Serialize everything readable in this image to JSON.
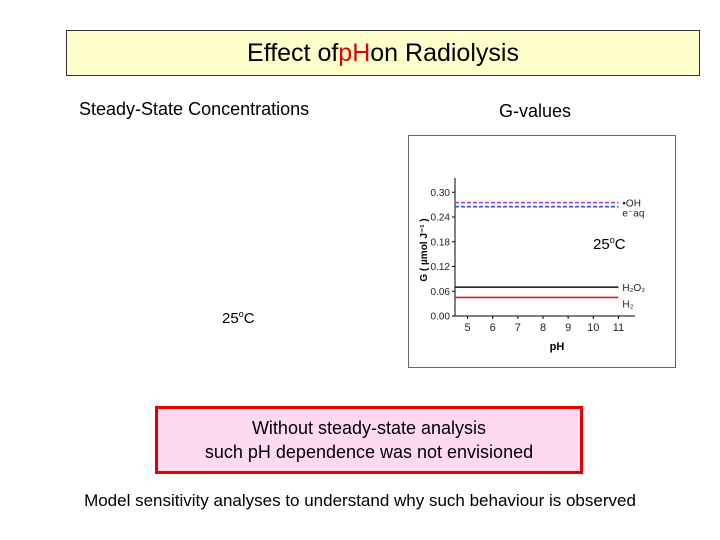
{
  "title": {
    "before": "Effect of ",
    "highlight": "pH",
    "after": " on Radiolysis"
  },
  "left_heading": "Steady-State Concentrations",
  "right_heading": "G-values",
  "temp_left": {
    "value": "25",
    "superscript": "o",
    "unit": "C"
  },
  "temp_right": {
    "value": "25",
    "superscript": "o",
    "unit": "C"
  },
  "note": {
    "line1": "Without steady-state analysis",
    "line2": "such pH dependence was not envisioned"
  },
  "footer": "Model sensitivity analyses to understand why such behaviour is observed",
  "chart_data": {
    "type": "line",
    "xlabel": "pH",
    "ylabel": "G ( µmol J⁻¹ )",
    "xlim": [
      4.5,
      11.5
    ],
    "ylim": [
      0.0,
      0.32
    ],
    "xticks": [
      "5",
      "6",
      "7",
      "8",
      "9",
      "10",
      "11"
    ],
    "yticks": [
      "0.00",
      "0.06",
      "0.12",
      "0.18",
      "0.24",
      "0.30"
    ],
    "grid": false,
    "legend": "right",
    "series": [
      {
        "name": "•OH",
        "color": "#b040c0",
        "dashed": true,
        "x": [
          4.5,
          11
        ],
        "values": [
          0.275,
          0.275
        ]
      },
      {
        "name": "e⁻aq",
        "color": "#3050e0",
        "dashed": true,
        "x": [
          4.5,
          11
        ],
        "values": [
          0.265,
          0.265
        ]
      },
      {
        "name": "H₂O₂",
        "color": "#111111",
        "dashed": false,
        "x": [
          4.5,
          11
        ],
        "values": [
          0.07,
          0.07
        ]
      },
      {
        "name": "H₂",
        "color": "#e02020",
        "dashed": false,
        "x": [
          4.5,
          11
        ],
        "values": [
          0.045,
          0.045
        ]
      }
    ]
  }
}
